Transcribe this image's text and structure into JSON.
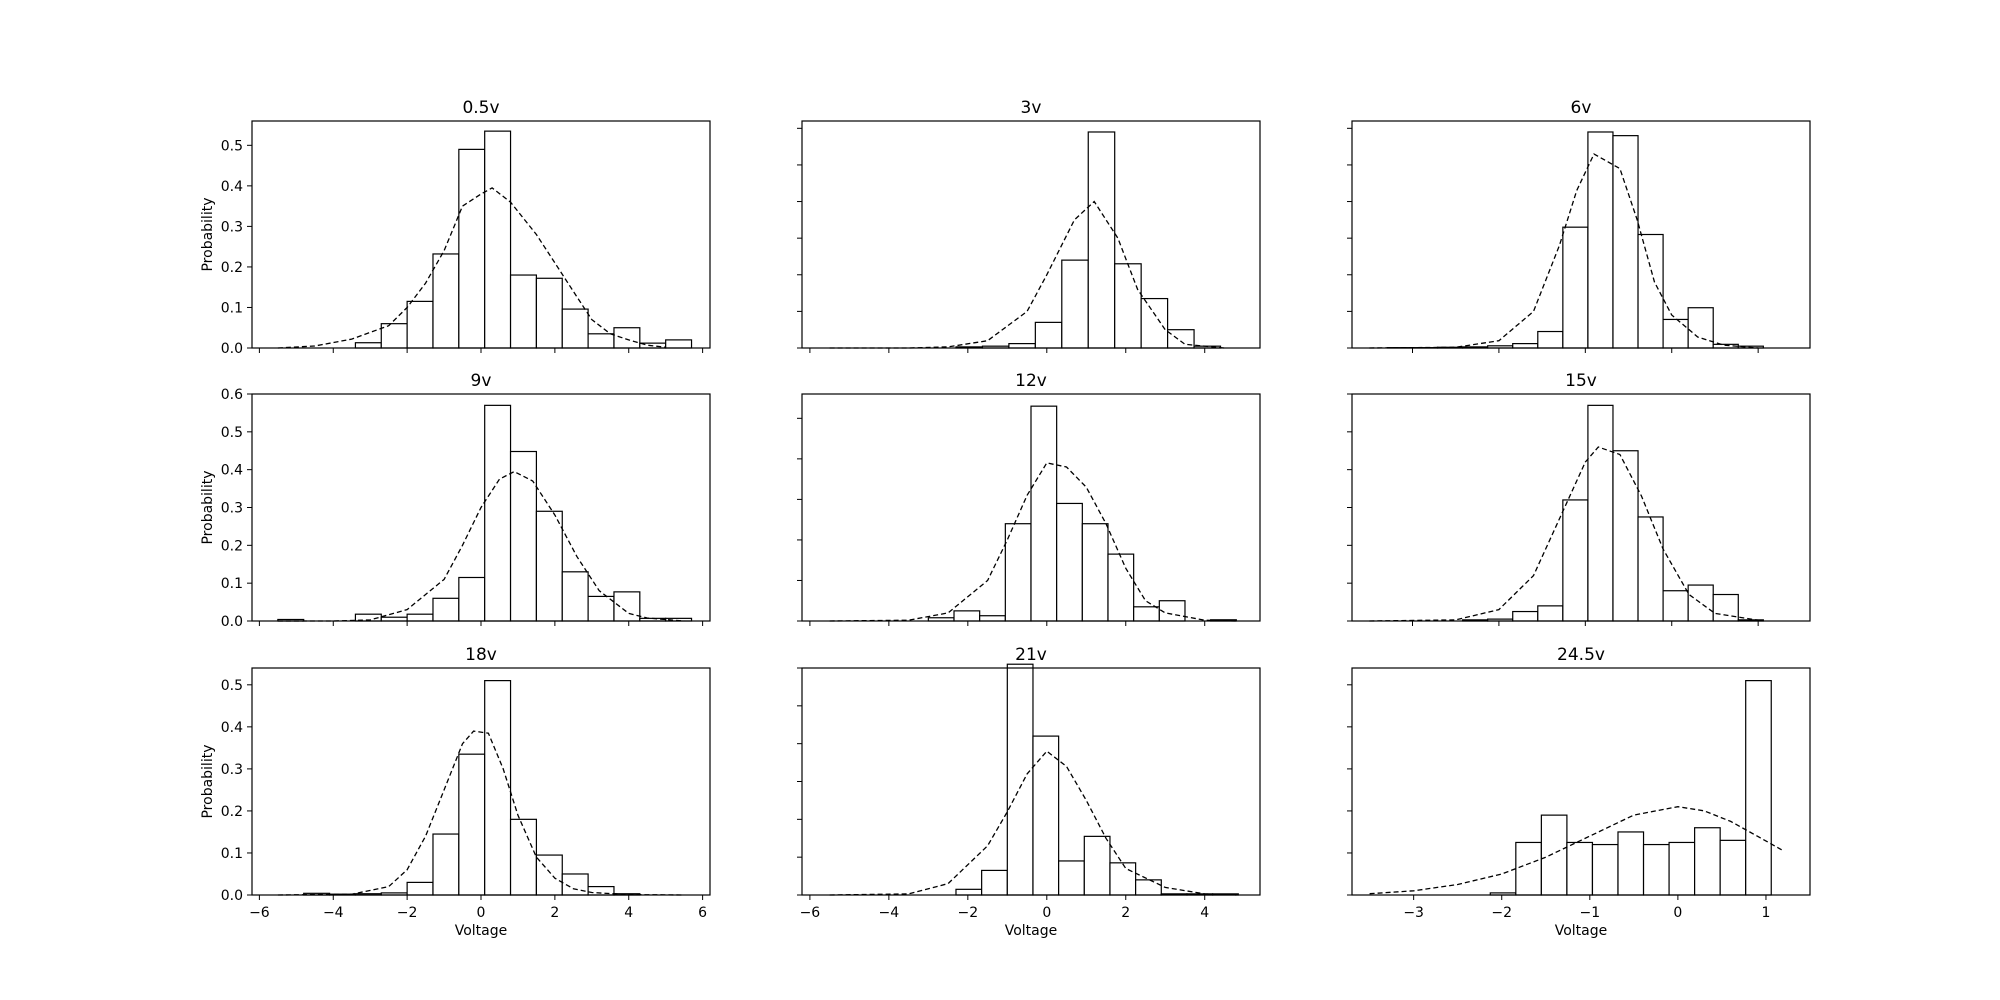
{
  "figure": {
    "xlabel": "Voltage",
    "ylabel": "Probability"
  },
  "chart_data": [
    {
      "type": "bar",
      "title": "0.5v",
      "xlabel": "",
      "ylabel": "Probability",
      "xlim": [
        -6.2,
        6.2
      ],
      "ylim": [
        0,
        0.56
      ],
      "xticks": [
        -6,
        -4,
        -2,
        0,
        2,
        4,
        6
      ],
      "xtick_labels_shown": false,
      "yticks": [
        0.0,
        0.1,
        0.2,
        0.3,
        0.4,
        0.5
      ],
      "ytick_labels": [
        "0.0",
        "0.1",
        "0.2",
        "0.3",
        "0.4",
        "0.5"
      ],
      "bin_edges": [
        -5.5,
        -4.8,
        -4.1,
        -3.4,
        -2.7,
        -2.0,
        -1.3,
        -0.6,
        0.1,
        0.8,
        1.5,
        2.2,
        2.9,
        3.6,
        4.3,
        5.0,
        5.7
      ],
      "values": [
        0.0,
        0.0,
        0.0,
        0.013,
        0.06,
        0.115,
        0.232,
        0.49,
        0.535,
        0.18,
        0.172,
        0.096,
        0.035,
        0.05,
        0.012,
        0.02
      ],
      "fit_curve": {
        "x": [
          -5.5,
          -4.5,
          -3.5,
          -2.5,
          -2.0,
          -1.5,
          -1.0,
          -0.5,
          0.0,
          0.3,
          0.8,
          1.5,
          2.0,
          2.5,
          3.0,
          3.5,
          4.0,
          4.5,
          5.0
        ],
        "y": [
          0.0,
          0.005,
          0.022,
          0.055,
          0.1,
          0.16,
          0.24,
          0.35,
          0.38,
          0.395,
          0.36,
          0.28,
          0.21,
          0.14,
          0.07,
          0.035,
          0.02,
          0.007,
          0.002
        ]
      }
    },
    {
      "type": "bar",
      "title": "3v",
      "xlabel": "",
      "ylabel": "",
      "xlim": [
        -6.2,
        5.4
      ],
      "ylim": [
        0,
        0.62
      ],
      "xticks": [
        -6,
        -4,
        -2,
        0,
        2,
        4
      ],
      "xtick_labels_shown": false,
      "yticks": [
        0.0,
        0.1,
        0.2,
        0.3,
        0.4,
        0.5,
        0.6
      ],
      "ytick_labels": [],
      "bin_edges": [
        -2.3,
        -1.63,
        -0.96,
        -0.29,
        0.38,
        1.05,
        1.72,
        2.39,
        3.06,
        3.73,
        4.4
      ],
      "values": [
        0.003,
        0.005,
        0.012,
        0.07,
        0.24,
        0.59,
        0.23,
        0.135,
        0.05,
        0.005
      ],
      "fit_curve": {
        "x": [
          -5.5,
          -3.5,
          -2.5,
          -1.5,
          -0.5,
          0.0,
          0.7,
          1.2,
          1.8,
          2.3,
          3.0,
          3.5,
          4.5
        ],
        "y": [
          0.0,
          0.0,
          0.003,
          0.02,
          0.1,
          0.2,
          0.35,
          0.4,
          0.3,
          0.16,
          0.05,
          0.01,
          0.0
        ]
      }
    },
    {
      "type": "bar",
      "title": "6v",
      "xlabel": "",
      "ylabel": "",
      "xlim": [
        -3.7,
        1.6
      ],
      "ylim": [
        0,
        0.62
      ],
      "xticks": [
        -3,
        -2,
        -1,
        0,
        1
      ],
      "xtick_labels_shown": false,
      "yticks": [
        0.0,
        0.1,
        0.2,
        0.3,
        0.4,
        0.5,
        0.6
      ],
      "ytick_labels": [],
      "bin_edges": [
        -3.58,
        -3.29,
        -3.0,
        -2.71,
        -2.42,
        -2.13,
        -1.84,
        -1.55,
        -1.26,
        -0.97,
        -0.68,
        -0.39,
        -0.1,
        0.19,
        0.48,
        0.77,
        1.06
      ],
      "values": [
        0.0,
        0.001,
        0.001,
        0.002,
        0.003,
        0.006,
        0.012,
        0.045,
        0.33,
        0.59,
        0.58,
        0.31,
        0.078,
        0.11,
        0.01,
        0.005
      ],
      "fit_curve": {
        "x": [
          -3.5,
          -2.5,
          -2.0,
          -1.6,
          -1.3,
          -1.1,
          -0.9,
          -0.6,
          -0.4,
          -0.2,
          0.0,
          0.3,
          0.6,
          1.0
        ],
        "y": [
          0.0,
          0.002,
          0.02,
          0.1,
          0.28,
          0.43,
          0.53,
          0.49,
          0.35,
          0.18,
          0.09,
          0.03,
          0.008,
          0.0
        ]
      }
    },
    {
      "type": "bar",
      "title": "9v",
      "xlabel": "",
      "ylabel": "Probability",
      "xlim": [
        -6.2,
        6.2
      ],
      "ylim": [
        0,
        0.6
      ],
      "xticks": [
        -6,
        -4,
        -2,
        0,
        2,
        4,
        6
      ],
      "xtick_labels_shown": false,
      "yticks": [
        0.0,
        0.1,
        0.2,
        0.3,
        0.4,
        0.5,
        0.6
      ],
      "ytick_labels": [
        "0.0",
        "0.1",
        "0.2",
        "0.3",
        "0.4",
        "0.5",
        "0.6"
      ],
      "bin_edges": [
        -5.5,
        -4.8,
        -4.1,
        -3.4,
        -2.7,
        -2.0,
        -1.3,
        -0.6,
        0.1,
        0.8,
        1.5,
        2.2,
        2.9,
        3.6,
        4.3,
        5.0,
        5.7
      ],
      "values": [
        0.004,
        0.0,
        0.0,
        0.018,
        0.01,
        0.018,
        0.06,
        0.115,
        0.57,
        0.448,
        0.29,
        0.13,
        0.065,
        0.077,
        0.007,
        0.007
      ],
      "fit_curve": {
        "x": [
          -5.5,
          -4.0,
          -3.0,
          -2.0,
          -1.0,
          -0.5,
          0.0,
          0.5,
          0.9,
          1.4,
          2.0,
          2.6,
          3.2,
          4.0,
          4.5,
          5.5
        ],
        "y": [
          0.0,
          0.0,
          0.003,
          0.03,
          0.11,
          0.2,
          0.3,
          0.375,
          0.395,
          0.37,
          0.28,
          0.17,
          0.08,
          0.02,
          0.008,
          0.0
        ]
      }
    },
    {
      "type": "bar",
      "title": "12v",
      "xlabel": "",
      "ylabel": "",
      "xlim": [
        -6.2,
        5.4
      ],
      "ylim": [
        0,
        0.56
      ],
      "xticks": [
        -6,
        -4,
        -2,
        0,
        2,
        4
      ],
      "xtick_labels_shown": false,
      "yticks": [
        0.0,
        0.1,
        0.2,
        0.3,
        0.4,
        0.5
      ],
      "ytick_labels": [],
      "bin_edges": [
        -3.0,
        -2.35,
        -1.7,
        -1.05,
        -0.4,
        0.25,
        0.9,
        1.55,
        2.2,
        2.85,
        3.5,
        4.15,
        4.8
      ],
      "values": [
        0.008,
        0.025,
        0.013,
        0.24,
        0.53,
        0.29,
        0.24,
        0.165,
        0.035,
        0.05,
        0.0,
        0.003
      ],
      "fit_curve": {
        "x": [
          -5.5,
          -3.5,
          -2.5,
          -1.5,
          -1.0,
          -0.5,
          0.0,
          0.5,
          1.0,
          1.5,
          2.0,
          2.5,
          3.0,
          4.0,
          4.8
        ],
        "y": [
          0.0,
          0.002,
          0.02,
          0.1,
          0.2,
          0.31,
          0.39,
          0.38,
          0.33,
          0.24,
          0.13,
          0.05,
          0.02,
          0.002,
          0.0
        ]
      }
    },
    {
      "type": "bar",
      "title": "15v",
      "xlabel": "",
      "ylabel": "",
      "xlim": [
        -3.7,
        1.6
      ],
      "ylim": [
        0,
        0.6
      ],
      "xticks": [
        -3,
        -2,
        -1,
        0,
        1
      ],
      "xtick_labels_shown": false,
      "yticks": [
        0.0,
        0.1,
        0.2,
        0.3,
        0.4,
        0.5,
        0.6
      ],
      "ytick_labels": [],
      "bin_edges": [
        -3.58,
        -3.29,
        -3.0,
        -2.71,
        -2.42,
        -2.13,
        -1.84,
        -1.55,
        -1.26,
        -0.97,
        -0.68,
        -0.39,
        -0.1,
        0.19,
        0.48,
        0.77,
        1.06
      ],
      "values": [
        0.0,
        0.0,
        0.0,
        0.0,
        0.003,
        0.005,
        0.025,
        0.04,
        0.32,
        0.57,
        0.45,
        0.275,
        0.08,
        0.095,
        0.07,
        0.003
      ],
      "fit_curve": {
        "x": [
          -3.5,
          -2.5,
          -2.0,
          -1.6,
          -1.3,
          -1.0,
          -0.85,
          -0.6,
          -0.35,
          -0.1,
          0.2,
          0.5,
          1.0
        ],
        "y": [
          0.0,
          0.003,
          0.03,
          0.12,
          0.27,
          0.42,
          0.46,
          0.44,
          0.33,
          0.19,
          0.07,
          0.02,
          0.002
        ]
      }
    },
    {
      "type": "bar",
      "title": "18v",
      "xlabel": "Voltage",
      "ylabel": "Probability",
      "xlim": [
        -6.2,
        6.2
      ],
      "ylim": [
        0,
        0.54
      ],
      "xticks": [
        -6,
        -4,
        -2,
        0,
        2,
        4,
        6
      ],
      "xtick_labels_shown": true,
      "xtick_labels": [
        "−6",
        "−4",
        "−2",
        "0",
        "2",
        "4",
        "6"
      ],
      "yticks": [
        0.0,
        0.1,
        0.2,
        0.3,
        0.4,
        0.5
      ],
      "ytick_labels": [
        "0.0",
        "0.1",
        "0.2",
        "0.3",
        "0.4",
        "0.5"
      ],
      "bin_edges": [
        -5.5,
        -4.8,
        -4.1,
        -3.4,
        -2.7,
        -2.0,
        -1.3,
        -0.6,
        0.1,
        0.8,
        1.5,
        2.2,
        2.9,
        3.6,
        4.3,
        5.0,
        5.7
      ],
      "values": [
        0.0,
        0.004,
        0.002,
        0.003,
        0.005,
        0.03,
        0.145,
        0.335,
        0.51,
        0.18,
        0.095,
        0.05,
        0.02,
        0.003,
        0.0,
        0.0
      ],
      "fit_curve": {
        "x": [
          -5.5,
          -3.5,
          -2.5,
          -2.0,
          -1.5,
          -1.0,
          -0.5,
          -0.2,
          0.2,
          0.6,
          1.0,
          1.5,
          2.0,
          2.5,
          3.0,
          4.0,
          5.5
        ],
        "y": [
          0.0,
          0.002,
          0.02,
          0.06,
          0.14,
          0.25,
          0.36,
          0.39,
          0.385,
          0.3,
          0.19,
          0.09,
          0.04,
          0.015,
          0.006,
          0.001,
          0.0
        ]
      }
    },
    {
      "type": "bar",
      "title": "21v",
      "xlabel": "Voltage",
      "ylabel": "",
      "xlim": [
        -6.2,
        5.4
      ],
      "ylim": [
        0,
        0.6
      ],
      "xticks": [
        -6,
        -4,
        -2,
        0,
        2,
        4
      ],
      "xtick_labels_shown": true,
      "xtick_labels": [
        "−6",
        "−4",
        "−2",
        "0",
        "2",
        "4"
      ],
      "yticks": [
        0.0,
        0.1,
        0.2,
        0.3,
        0.4,
        0.5,
        0.6
      ],
      "ytick_labels": [],
      "bin_edges": [
        -2.3,
        -1.65,
        -1.0,
        -0.35,
        0.3,
        0.95,
        1.6,
        2.25,
        2.9,
        3.55,
        4.2,
        4.85
      ],
      "values": [
        0.015,
        0.065,
        0.61,
        0.42,
        0.09,
        0.155,
        0.085,
        0.04,
        0.003,
        0.003,
        0.003
      ],
      "fit_curve": {
        "x": [
          -5.5,
          -3.5,
          -2.5,
          -1.5,
          -1.0,
          -0.5,
          0.0,
          0.5,
          1.0,
          1.5,
          2.0,
          3.0,
          4.0,
          4.8
        ],
        "y": [
          0.0,
          0.003,
          0.03,
          0.13,
          0.22,
          0.32,
          0.38,
          0.34,
          0.25,
          0.15,
          0.07,
          0.02,
          0.003,
          0.0
        ]
      }
    },
    {
      "type": "bar",
      "title": "24.5v",
      "xlabel": "Voltage",
      "ylabel": "",
      "xlim": [
        -3.7,
        1.5
      ],
      "ylim": [
        0,
        0.54
      ],
      "xticks": [
        -3,
        -2,
        -1,
        0,
        1
      ],
      "xtick_labels_shown": true,
      "xtick_labels": [
        "−3",
        "−2",
        "−1",
        "0",
        "1"
      ],
      "yticks": [
        0.0,
        0.1,
        0.2,
        0.3,
        0.4,
        0.5
      ],
      "ytick_labels": [],
      "bin_edges": [
        -3.58,
        -3.29,
        -3.0,
        -2.71,
        -2.42,
        -2.13,
        -1.84,
        -1.55,
        -1.26,
        -0.97,
        -0.68,
        -0.39,
        -0.1,
        0.19,
        0.48,
        0.77,
        1.06
      ],
      "values": [
        0.0,
        0.0,
        0.0,
        0.0,
        0.0,
        0.005,
        0.125,
        0.19,
        0.125,
        0.12,
        0.15,
        0.12,
        0.125,
        0.16,
        0.13,
        0.51
      ],
      "fit_curve": {
        "x": [
          -3.5,
          -3.0,
          -2.5,
          -2.0,
          -1.5,
          -1.0,
          -0.5,
          0.0,
          0.3,
          0.6,
          0.9,
          1.2
        ],
        "y": [
          0.003,
          0.01,
          0.025,
          0.05,
          0.09,
          0.14,
          0.19,
          0.21,
          0.2,
          0.175,
          0.14,
          0.105
        ]
      }
    }
  ]
}
